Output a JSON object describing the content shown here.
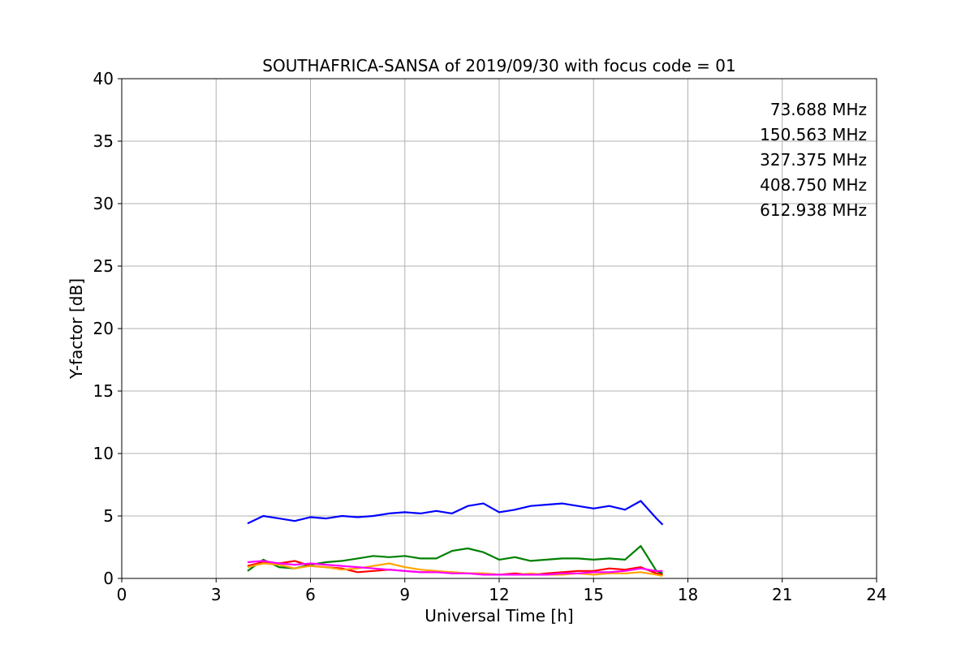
{
  "chart_data": {
    "type": "line",
    "title": "SOUTHAFRICA-SANSA of 2019/09/30 with focus code = 01",
    "xlabel": "Universal Time [h]",
    "ylabel": "Y-factor [dB]",
    "xlim": [
      0,
      24
    ],
    "ylim": [
      0,
      40
    ],
    "xticks": [
      0,
      3,
      6,
      9,
      12,
      15,
      18,
      21,
      24
    ],
    "yticks": [
      0,
      5,
      10,
      15,
      20,
      25,
      30,
      35,
      40
    ],
    "grid": true,
    "legend_position": "top-right",
    "series": [
      {
        "name": "73.688 MHz",
        "color": "#0000ff",
        "x": [
          4.0,
          4.5,
          5.0,
          5.5,
          6.0,
          6.5,
          7.0,
          7.5,
          8.0,
          8.5,
          9.0,
          9.5,
          10.0,
          10.5,
          11.0,
          11.5,
          12.0,
          12.5,
          13.0,
          13.5,
          14.0,
          14.5,
          15.0,
          15.5,
          16.0,
          16.5,
          17.0,
          17.2
        ],
        "y": [
          4.4,
          5.0,
          4.8,
          4.6,
          4.9,
          4.8,
          5.0,
          4.9,
          5.0,
          5.2,
          5.3,
          5.2,
          5.4,
          5.2,
          5.8,
          6.0,
          5.3,
          5.5,
          5.8,
          5.9,
          6.0,
          5.8,
          5.6,
          5.8,
          5.5,
          6.2,
          4.8,
          4.3
        ]
      },
      {
        "name": "150.563 MHz",
        "color": "#008000",
        "x": [
          4.0,
          4.5,
          5.0,
          5.5,
          6.0,
          6.5,
          7.0,
          7.5,
          8.0,
          8.5,
          9.0,
          9.5,
          10.0,
          10.5,
          11.0,
          11.5,
          12.0,
          12.5,
          13.0,
          13.5,
          14.0,
          14.5,
          15.0,
          15.5,
          16.0,
          16.5,
          17.0,
          17.2
        ],
        "y": [
          0.6,
          1.5,
          0.9,
          0.8,
          1.1,
          1.3,
          1.4,
          1.6,
          1.8,
          1.7,
          1.8,
          1.6,
          1.6,
          2.2,
          2.4,
          2.1,
          1.5,
          1.7,
          1.4,
          1.5,
          1.6,
          1.6,
          1.5,
          1.6,
          1.5,
          2.6,
          0.6,
          0.4
        ]
      },
      {
        "name": "327.375 MHz",
        "color": "#ff0000",
        "x": [
          4.0,
          4.5,
          5.0,
          5.5,
          6.0,
          6.5,
          7.0,
          7.5,
          8.0,
          8.5,
          9.0,
          9.5,
          10.0,
          10.5,
          11.0,
          11.5,
          12.0,
          12.5,
          13.0,
          13.5,
          14.0,
          14.5,
          15.0,
          15.5,
          16.0,
          16.5,
          17.0,
          17.2
        ],
        "y": [
          1.0,
          1.3,
          1.2,
          1.4,
          1.0,
          0.9,
          0.8,
          0.5,
          0.6,
          0.7,
          0.6,
          0.5,
          0.5,
          0.5,
          0.4,
          0.4,
          0.3,
          0.4,
          0.3,
          0.4,
          0.5,
          0.6,
          0.6,
          0.8,
          0.7,
          0.9,
          0.4,
          0.3
        ]
      },
      {
        "name": "408.750 MHz",
        "color": "#ffa500",
        "x": [
          4.0,
          4.5,
          5.0,
          5.5,
          6.0,
          6.5,
          7.0,
          7.5,
          8.0,
          8.5,
          9.0,
          9.5,
          10.0,
          10.5,
          11.0,
          11.5,
          12.0,
          12.5,
          13.0,
          13.5,
          14.0,
          14.5,
          15.0,
          15.5,
          16.0,
          16.5,
          17.0,
          17.2
        ],
        "y": [
          0.9,
          1.2,
          1.1,
          0.8,
          1.0,
          0.9,
          0.7,
          0.8,
          1.0,
          1.2,
          0.9,
          0.7,
          0.6,
          0.5,
          0.4,
          0.4,
          0.3,
          0.3,
          0.4,
          0.3,
          0.3,
          0.4,
          0.3,
          0.4,
          0.4,
          0.5,
          0.3,
          0.2
        ]
      },
      {
        "name": "612.938 MHz",
        "color": "#ff00ff",
        "x": [
          4.0,
          4.5,
          5.0,
          5.5,
          6.0,
          6.5,
          7.0,
          7.5,
          8.0,
          8.5,
          9.0,
          9.5,
          10.0,
          10.5,
          11.0,
          11.5,
          12.0,
          12.5,
          13.0,
          13.5,
          14.0,
          14.5,
          15.0,
          15.5,
          16.0,
          16.5,
          17.0,
          17.2
        ],
        "y": [
          1.3,
          1.4,
          1.2,
          1.1,
          1.2,
          1.1,
          1.0,
          0.9,
          0.8,
          0.7,
          0.6,
          0.5,
          0.5,
          0.4,
          0.4,
          0.3,
          0.3,
          0.3,
          0.3,
          0.3,
          0.4,
          0.4,
          0.5,
          0.5,
          0.6,
          0.8,
          0.6,
          0.6
        ]
      }
    ]
  }
}
